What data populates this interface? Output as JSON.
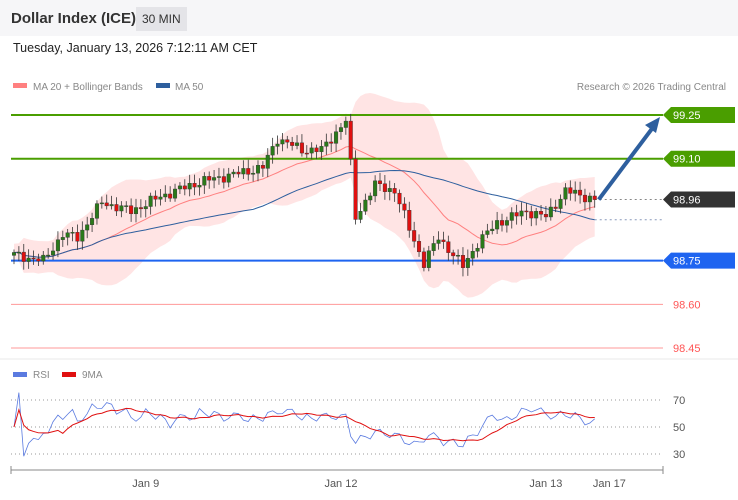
{
  "header": {
    "title": "Dollar Index (ICE)",
    "timeframe": "30 MIN",
    "datetime": "Tuesday, January 13, 2026 7:12:11 AM CET"
  },
  "legend": {
    "ma20": "MA 20 + Bollinger Bands",
    "ma50": "MA 50",
    "copyright": "Research © 2026 Trading Central"
  },
  "colors": {
    "resistance": "#4a9e00",
    "support": "#1e64f0",
    "current": "#333333",
    "lower": "#ff5555",
    "arrow": "#2e5f9e",
    "up": "#2a7a1a",
    "down": "#e01010"
  },
  "chart_data": [
    {
      "type": "candlestick",
      "title": "Dollar Index (ICE) 30 MIN",
      "ylim": [
        98.41,
        99.33
      ],
      "levels": [
        {
          "value": 99.25,
          "label": "99.25",
          "kind": "resistance"
        },
        {
          "value": 99.1,
          "label": "99.10",
          "kind": "resistance"
        },
        {
          "value": 98.96,
          "label": "98.96",
          "kind": "current"
        },
        {
          "value": 98.75,
          "label": "98.75",
          "kind": "support"
        },
        {
          "value": 98.6,
          "label": "98.60",
          "kind": "lower"
        },
        {
          "value": 98.45,
          "label": "98.45",
          "kind": "lower"
        }
      ],
      "candle_count": 120,
      "close_anchors": [
        [
          0,
          98.77
        ],
        [
          6,
          98.75
        ],
        [
          10,
          98.84
        ],
        [
          13,
          98.83
        ],
        [
          18,
          98.95
        ],
        [
          24,
          98.92
        ],
        [
          30,
          98.97
        ],
        [
          38,
          99.02
        ],
        [
          46,
          99.05
        ],
        [
          51,
          99.07
        ],
        [
          54,
          99.17
        ],
        [
          59,
          99.13
        ],
        [
          63,
          99.13
        ],
        [
          68,
          99.23
        ],
        [
          69,
          99.08
        ],
        [
          70,
          98.9
        ],
        [
          74,
          99.01
        ],
        [
          78,
          98.99
        ],
        [
          81,
          98.86
        ],
        [
          84,
          98.74
        ],
        [
          87,
          98.83
        ],
        [
          92,
          98.73
        ],
        [
          95,
          98.81
        ],
        [
          99,
          98.88
        ],
        [
          105,
          98.92
        ],
        [
          109,
          98.9
        ],
        [
          113,
          98.99
        ],
        [
          119,
          98.96
        ]
      ],
      "forecast_target": 99.25,
      "x_labels": [
        {
          "label": "Jan 9",
          "index": 27
        },
        {
          "label": "Jan 12",
          "index": 67
        },
        {
          "label": "Jan 13",
          "index": 109
        },
        {
          "label": "Jan 17",
          "index": 122
        }
      ]
    },
    {
      "type": "line",
      "title": "RSI",
      "series": [
        {
          "name": "RSI"
        },
        {
          "name": "9MA"
        }
      ],
      "ylim": [
        20,
        80
      ],
      "yticks": [
        70,
        50,
        30
      ]
    }
  ]
}
